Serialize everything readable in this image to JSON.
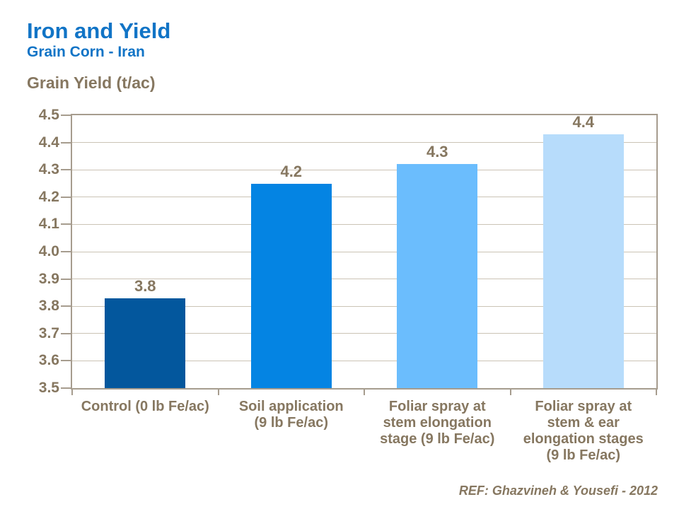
{
  "header": {
    "title": "Iron and Yield",
    "subtitle": "Grain Corn - Iran"
  },
  "chart_data": {
    "type": "bar",
    "title": "Iron and Yield",
    "subtitle": "Grain Corn - Iran",
    "xlabel": "",
    "ylabel": "Grain Yield (t/ac)",
    "ylim": [
      3.5,
      4.5
    ],
    "ytick_step": 0.1,
    "grid": true,
    "legend": "none",
    "categories": [
      "Control (0 lb Fe/ac)",
      "Soil application\n(9 lb Fe/ac)",
      "Foliar spray at\nstem elongation\nstage (9 lb Fe/ac)",
      "Foliar spray at\nstem & ear\nelongation stages\n(9 lb Fe/ac)"
    ],
    "values": [
      3.83,
      4.25,
      4.32,
      4.43
    ],
    "value_labels": [
      "3.8",
      "4.2",
      "4.3",
      "4.4"
    ],
    "bar_colors": [
      "#03579D",
      "#0484E3",
      "#6BBDFD",
      "#B7DCFB"
    ]
  },
  "footer": {
    "reference": "REF: Ghazvineh & Yousefi - 2012"
  },
  "colors": {
    "title_blue": "#1174C6",
    "text_brown": "#867760",
    "axis_line": "#A69C8E",
    "gridline": "#CBC3B5",
    "background": "#FFFFFF"
  }
}
